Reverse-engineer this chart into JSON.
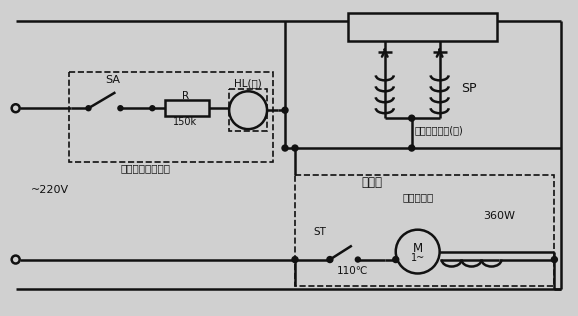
{
  "bg": "#d0d0d0",
  "lc": "#111111",
  "line_width": 1.8,
  "fw": 5.78,
  "fh": 3.16,
  "labels": {
    "SA": "SA",
    "HL": "HL(红)",
    "R": "R",
    "R_val": "150k",
    "SP": "SP",
    "pressure": "压力安全开关(盖)",
    "voltage": "~220V",
    "controller": "遥控器",
    "motor_type": "单摆式电机",
    "motor_line1": "M",
    "motor_line2": "1~",
    "power": "360W",
    "temp": "110℃",
    "ST": "ST",
    "switch_label": "带指示灯电藤开关"
  }
}
